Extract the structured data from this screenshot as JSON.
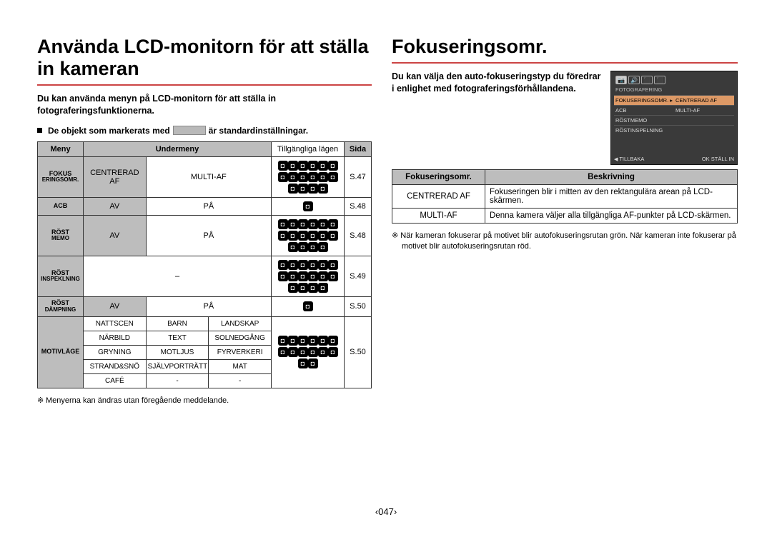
{
  "left": {
    "title": "Använda LCD-monitorn för att ställa in kameran",
    "intro": "Du kan använda menyn på LCD-monitorn för att ställa in fotograferingsfunktionerna.",
    "bullet_pre": "De objekt som markerats med",
    "bullet_post": "är standardinställningar.",
    "swatch_color": "#b9b9b9",
    "footnote": "Menyerna kan ändras utan föregående meddelande.",
    "table": {
      "head": {
        "meny": "Meny",
        "under": "Undermeny",
        "lagen": "Tillgängliga lägen",
        "sida": "Sida"
      },
      "rows": [
        {
          "meny_l1": "FOKUS",
          "meny_l2": "ERINGSOMR.",
          "c1": "CENTRERAD AF",
          "c1_def": true,
          "c2": "MULTI-AF",
          "sida": "S.47"
        },
        {
          "meny_l1": "ACB",
          "meny_l2": "",
          "c1": "AV",
          "c1_def": true,
          "c2": "PÅ",
          "sida": "S.48"
        },
        {
          "meny_l1": "RÖST",
          "meny_l2": "MEMO",
          "c1": "AV",
          "c1_def": true,
          "c2": "PÅ",
          "sida": "S.48"
        },
        {
          "meny_l1": "RÖST",
          "meny_l2": "INSPEKLNING",
          "c1": "–",
          "c1_def": false,
          "c2": "",
          "sida": "S.49"
        },
        {
          "meny_l1": "RÖST",
          "meny_l2": "DÄMPNING",
          "c1": "AV",
          "c1_def": true,
          "c2": "PÅ",
          "sida": "S.50"
        }
      ],
      "motiv": {
        "label": "MOTIVLÄGE",
        "grid": [
          [
            "NATTSCEN",
            "BARN",
            "LANDSKAP"
          ],
          [
            "NÄRBILD",
            "TEXT",
            "SOLNEDGÅNG"
          ],
          [
            "GRYNING",
            "MOTLJUS",
            "FYRVERKERI"
          ],
          [
            "STRAND&SNÖ",
            "SJÄLVPORTRÄTT",
            "MAT"
          ],
          [
            "CAFÉ",
            "-",
            "-"
          ]
        ],
        "sida": "S.50"
      }
    }
  },
  "right": {
    "title": "Fokuseringsomr.",
    "intro": "Du kan välja den auto-fokuseringstyp du föredrar i enlighet med fotograferingsförhållandena.",
    "lcd": {
      "section": "FOTOGRAFERING",
      "items": [
        {
          "l": "FOKUSERINGSOMR.",
          "r": "CENTRERAD AF",
          "hl": true
        },
        {
          "l": "ACB",
          "r": "MULTI-AF"
        },
        {
          "l": "RÖSTMEMO",
          "r": ""
        },
        {
          "l": "RÖSTINSPELNING",
          "r": ""
        }
      ],
      "back": "TILLBAKA",
      "ok": "OK  STÄLL IN"
    },
    "table": {
      "h1": "Fokuseringsomr.",
      "h2": "Beskrivning",
      "rows": [
        {
          "k": "CENTRERAD AF",
          "v": "Fokuseringen blir i mitten av den rektangulära arean på LCD-skärmen."
        },
        {
          "k": "MULTI-AF",
          "v": "Denna kamera väljer alla tillgängliga AF-punkter på LCD-skärmen."
        }
      ]
    },
    "note": "När kameran fokuserar på motivet blir autofokuseringsrutan grön. När kameran inte fokuserar på motivet blir autofokuseringsrutan röd."
  },
  "pagenum": "‹047›",
  "colors": {
    "rule": "#c44040",
    "header_bg": "#bdbdbd",
    "default_bg": "#bdbdbd"
  }
}
